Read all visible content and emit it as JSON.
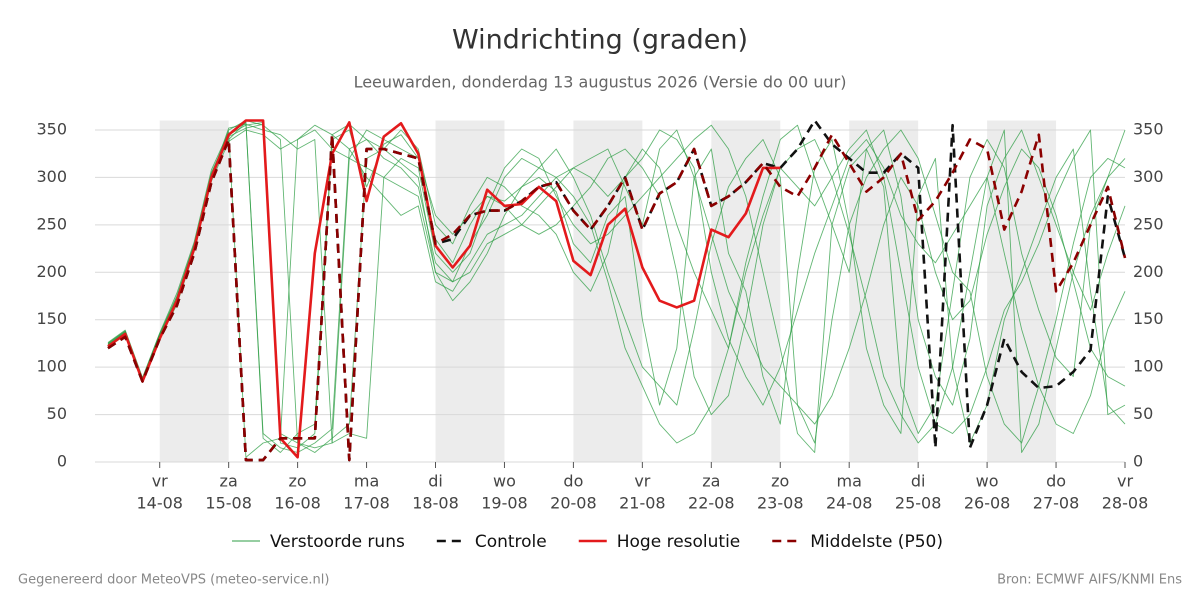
{
  "chart_data": {
    "type": "line",
    "title": "Windrichting (graden)",
    "subtitle": "Leeuwarden, donderdag 13 augustus 2026 (Versie do 00 uur)",
    "footer_left": "Gegenereerd door MeteoVPS (meteo-service.nl)",
    "footer_right": "Bron: ECMWF AIFS/KNMI Ens",
    "x": [
      "13-08 06:00",
      "13-08 12:00",
      "13-08 18:00",
      "14-08 00:00",
      "14-08 06:00",
      "14-08 12:00",
      "14-08 18:00",
      "15-08 00:00",
      "15-08 06:00",
      "15-08 12:00",
      "15-08 18:00",
      "16-08 00:00",
      "16-08 06:00",
      "16-08 12:00",
      "16-08 18:00",
      "17-08 00:00",
      "17-08 06:00",
      "17-08 12:00",
      "17-08 18:00",
      "18-08 00:00",
      "18-08 06:00",
      "18-08 12:00",
      "18-08 18:00",
      "19-08 00:00",
      "19-08 06:00",
      "19-08 12:00",
      "19-08 18:00",
      "20-08 00:00",
      "20-08 06:00",
      "20-08 12:00",
      "20-08 18:00",
      "21-08 00:00",
      "21-08 06:00",
      "21-08 12:00",
      "21-08 18:00",
      "22-08 00:00",
      "22-08 06:00",
      "22-08 12:00",
      "22-08 18:00",
      "23-08 00:00",
      "23-08 06:00",
      "23-08 12:00",
      "23-08 18:00",
      "24-08 00:00",
      "24-08 06:00",
      "24-08 12:00",
      "24-08 18:00",
      "25-08 00:00",
      "25-08 06:00",
      "25-08 12:00",
      "25-08 18:00",
      "26-08 00:00",
      "26-08 06:00",
      "26-08 12:00",
      "26-08 18:00",
      "27-08 00:00",
      "27-08 06:00",
      "27-08 12:00",
      "27-08 18:00",
      "28-08 00:00"
    ],
    "xlim": [
      "13-08 06:00",
      "28-08 00:00"
    ],
    "xticks": [
      {
        "value": "14-08 00:00",
        "label": "14-08",
        "weekday": "vr"
      },
      {
        "value": "15-08 00:00",
        "label": "15-08",
        "weekday": "za"
      },
      {
        "value": "16-08 00:00",
        "label": "16-08",
        "weekday": "zo"
      },
      {
        "value": "17-08 00:00",
        "label": "17-08",
        "weekday": "ma"
      },
      {
        "value": "18-08 00:00",
        "label": "18-08",
        "weekday": "di"
      },
      {
        "value": "19-08 00:00",
        "label": "19-08",
        "weekday": "wo"
      },
      {
        "value": "20-08 00:00",
        "label": "20-08",
        "weekday": "do"
      },
      {
        "value": "21-08 00:00",
        "label": "21-08",
        "weekday": "vr"
      },
      {
        "value": "22-08 00:00",
        "label": "22-08",
        "weekday": "za"
      },
      {
        "value": "23-08 00:00",
        "label": "23-08",
        "weekday": "zo"
      },
      {
        "value": "24-08 00:00",
        "label": "24-08",
        "weekday": "ma"
      },
      {
        "value": "25-08 00:00",
        "label": "25-08",
        "weekday": "di"
      },
      {
        "value": "26-08 00:00",
        "label": "26-08",
        "weekday": "wo"
      },
      {
        "value": "27-08 00:00",
        "label": "27-08",
        "weekday": "do"
      },
      {
        "value": "28-08 00:00",
        "label": "28-08",
        "weekday": "vr"
      }
    ],
    "shaded": [
      [
        "14-08 00:00",
        "15-08 00:00"
      ],
      [
        "18-08 00:00",
        "19-08 00:00"
      ],
      [
        "20-08 00:00",
        "21-08 00:00"
      ],
      [
        "22-08 00:00",
        "23-08 00:00"
      ],
      [
        "24-08 00:00",
        "25-08 00:00"
      ],
      [
        "26-08 00:00",
        "27-08 00:00"
      ]
    ],
    "ylim": [
      0,
      360
    ],
    "yticks": [
      0,
      50,
      100,
      150,
      200,
      250,
      300,
      350
    ],
    "y2lim": [
      0,
      360
    ],
    "y2ticks": [
      0,
      50,
      100,
      150,
      200,
      250,
      300,
      350
    ],
    "grid": true,
    "series": [
      {
        "name": "Verstoorde runs",
        "color": "#2e9e44",
        "dash": false,
        "members": [
          [
            125,
            138,
            88,
            135,
            175,
            230,
            305,
            345,
            355,
            358,
            20,
            15,
            30,
            340,
            350,
            290,
            335,
            345,
            320,
            235,
            210,
            250,
            280,
            275,
            290,
            300,
            285,
            230,
            210,
            260,
            280,
            150,
            60,
            120,
            300,
            330,
            220,
            180,
            90,
            40,
            200,
            310,
            340,
            250,
            120,
            60,
            30,
            280,
            320,
            100,
            20,
            60,
            150,
            200,
            250,
            300,
            330,
            180,
            60,
            40
          ],
          [
            122,
            135,
            86,
            132,
            168,
            225,
            298,
            350,
            360,
            355,
            340,
            20,
            10,
            25,
            40,
            320,
            330,
            350,
            330,
            250,
            230,
            270,
            300,
            290,
            270,
            260,
            240,
            200,
            180,
            220,
            300,
            330,
            310,
            250,
            200,
            160,
            120,
            210,
            280,
            340,
            355,
            300,
            250,
            200,
            330,
            350,
            280,
            150,
            90,
            60,
            130,
            270,
            320,
            350,
            300,
            250,
            200,
            160,
            220,
            270
          ],
          [
            124,
            136,
            87,
            134,
            172,
            228,
            302,
            340,
            358,
            30,
            15,
            10,
            20,
            35,
            330,
            340,
            320,
            310,
            290,
            210,
            190,
            230,
            260,
            300,
            320,
            310,
            330,
            300,
            260,
            200,
            150,
            100,
            80,
            60,
            140,
            230,
            290,
            320,
            340,
            300,
            60,
            20,
            150,
            250,
            300,
            330,
            350,
            320,
            260,
            200,
            180,
            90,
            40,
            20,
            80,
            150,
            230,
            300,
            320,
            310
          ],
          [
            126,
            139,
            89,
            136,
            178,
            232,
            308,
            348,
            5,
            20,
            25,
            340,
            355,
            345,
            330,
            300,
            280,
            260,
            270,
            190,
            180,
            210,
            240,
            250,
            260,
            280,
            300,
            310,
            320,
            330,
            290,
            250,
            330,
            350,
            300,
            240,
            180,
            140,
            100,
            80,
            60,
            40,
            70,
            120,
            180,
            250,
            300,
            270,
            200,
            150,
            170,
            240,
            290,
            330,
            310,
            260,
            190,
            120,
            90,
            80
          ],
          [
            123,
            137,
            86,
            133,
            170,
            226,
            300,
            352,
            356,
            350,
            345,
            330,
            340,
            20,
            30,
            25,
            300,
            320,
            310,
            220,
            200,
            220,
            270,
            310,
            330,
            320,
            280,
            250,
            230,
            240,
            260,
            280,
            300,
            320,
            340,
            355,
            330,
            280,
            200,
            120,
            30,
            10,
            250,
            310,
            330,
            290,
            80,
            30,
            60,
            180,
            300,
            340,
            310,
            220,
            160,
            110,
            90,
            250,
            300,
            320
          ],
          [
            125,
            138,
            88,
            135,
            174,
            229,
            304,
            346,
            358,
            25,
            10,
            30,
            40,
            345,
            356,
            340,
            330,
            315,
            300,
            200,
            170,
            190,
            220,
            260,
            290,
            310,
            300,
            280,
            250,
            190,
            120,
            80,
            40,
            20,
            30,
            60,
            120,
            200,
            260,
            310,
            330,
            340,
            300,
            240,
            170,
            90,
            50,
            20,
            40,
            100,
            200,
            300,
            350,
            10,
            40,
            120,
            200,
            260,
            300,
            350
          ],
          [
            124,
            137,
            87,
            134,
            171,
            227,
            301,
            343,
            352,
            356,
            30,
            20,
            15,
            20,
            320,
            350,
            340,
            330,
            320,
            260,
            240,
            260,
            280,
            270,
            250,
            240,
            250,
            270,
            290,
            320,
            330,
            310,
            280,
            200,
            90,
            50,
            70,
            150,
            250,
            310,
            290,
            270,
            300,
            330,
            350,
            300,
            200,
            100,
            40,
            30,
            50,
            100,
            160,
            190,
            230,
            280,
            320,
            350,
            50,
            60
          ],
          [
            121,
            134,
            85,
            131,
            166,
            222,
            296,
            338,
            350,
            345,
            330,
            340,
            350,
            330,
            320,
            310,
            300,
            290,
            280,
            200,
            190,
            200,
            230,
            240,
            250,
            270,
            290,
            310,
            300,
            280,
            300,
            320,
            350,
            340,
            310,
            200,
            130,
            90,
            60,
            100,
            160,
            220,
            270,
            320,
            340,
            310,
            260,
            230,
            210,
            240,
            270,
            300,
            220,
            140,
            80,
            40,
            30,
            70,
            140,
            180
          ]
        ]
      },
      {
        "name": "Controle",
        "color": "#111111",
        "dash": true,
        "values": [
          120,
          132,
          85,
          130,
          165,
          220,
          295,
          340,
          2,
          2,
          25,
          25,
          25,
          345,
          2,
          330,
          330,
          325,
          320,
          230,
          235,
          260,
          265,
          265,
          275,
          290,
          295,
          265,
          245,
          270,
          300,
          245,
          283,
          295,
          330,
          270,
          280,
          295,
          315,
          310,
          330,
          360,
          335,
          320,
          305,
          305,
          325,
          310,
          15,
          355,
          15,
          60,
          130,
          95,
          78,
          80,
          95,
          118,
          280,
          215
        ]
      },
      {
        "name": "Hoge resolutie",
        "color": "#e31a1c",
        "dash": false,
        "values": [
          122,
          135,
          85,
          130,
          170,
          225,
          300,
          345,
          360,
          360,
          25,
          5,
          220,
          325,
          358,
          275,
          343,
          357,
          325,
          228,
          205,
          228,
          287,
          270,
          272,
          290,
          275,
          212,
          197,
          250,
          267,
          205,
          170,
          163,
          170,
          245,
          237,
          262,
          310,
          310,
          null,
          null,
          null,
          null,
          null,
          null,
          null,
          null,
          null,
          null,
          null,
          null,
          null,
          null,
          null,
          null,
          null,
          null,
          null,
          null
        ]
      },
      {
        "name": "Middelste (P50)",
        "color": "#8b0000",
        "dash": true,
        "values": [
          120,
          132,
          85,
          130,
          165,
          220,
          295,
          340,
          2,
          2,
          25,
          25,
          25,
          345,
          2,
          330,
          330,
          325,
          320,
          230,
          240,
          260,
          265,
          265,
          275,
          290,
          295,
          265,
          245,
          270,
          300,
          245,
          283,
          295,
          330,
          270,
          280,
          295,
          315,
          290,
          280,
          310,
          345,
          315,
          285,
          300,
          325,
          255,
          275,
          305,
          340,
          330,
          245,
          285,
          345,
          180,
          210,
          250,
          290,
          215
        ]
      }
    ]
  }
}
